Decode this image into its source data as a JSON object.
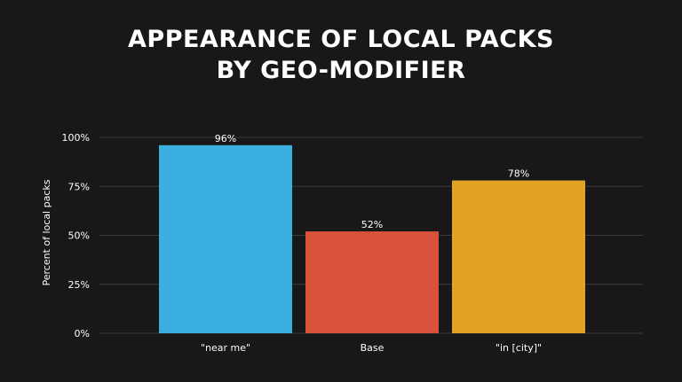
{
  "chart_data": {
    "type": "bar",
    "title_lines": [
      "APPEARANCE OF LOCAL PACKS",
      "BY GEO-MODIFIER"
    ],
    "ylabel": "Percent of local packs",
    "xlabel": "",
    "ylim": [
      0,
      100
    ],
    "yticks": [
      0,
      25,
      50,
      75,
      100
    ],
    "ytick_labels": [
      "0%",
      "25%",
      "50%",
      "75%",
      "100%"
    ],
    "categories": [
      "\"near me\"",
      "Base",
      "\"in [city]\""
    ],
    "values": [
      96,
      52,
      78
    ],
    "data_labels": [
      "96%",
      "52%",
      "78%"
    ],
    "colors": [
      "#3aafe0",
      "#d9523c",
      "#e2a322"
    ],
    "grid": true,
    "legend": "none"
  }
}
